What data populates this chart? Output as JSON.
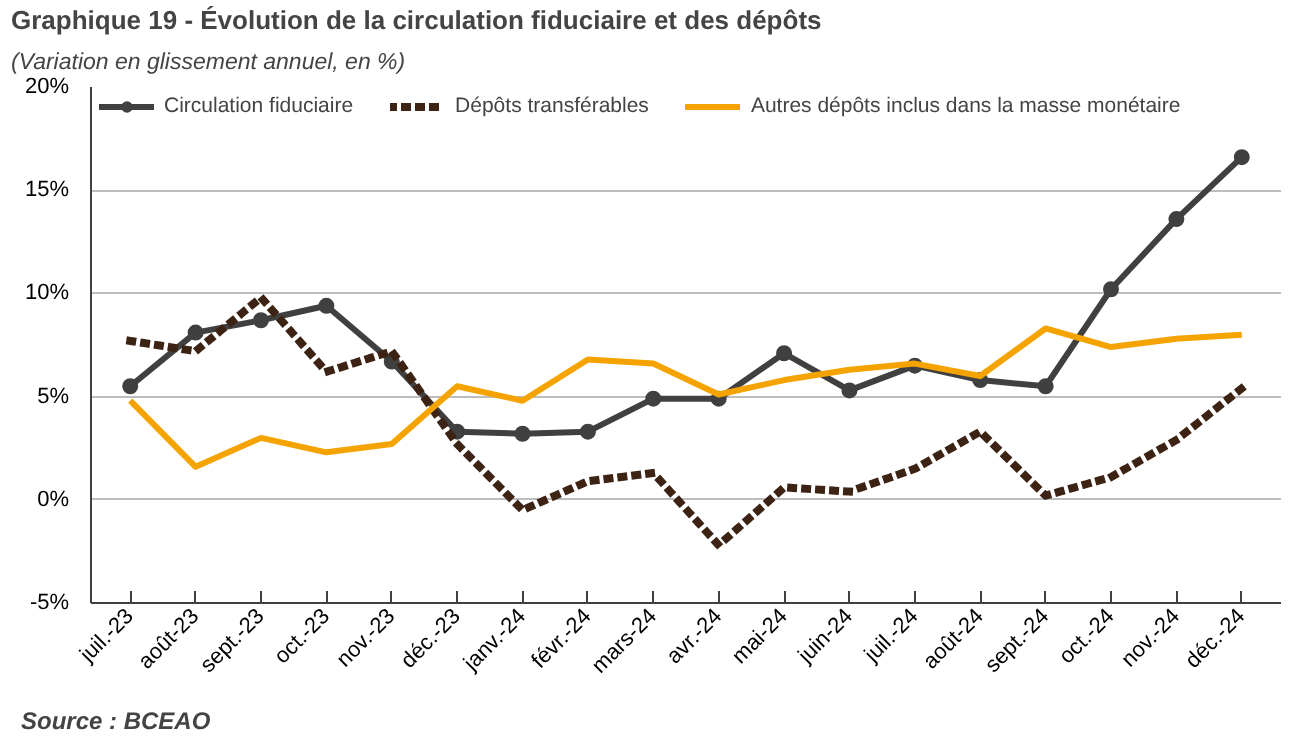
{
  "chart_data": {
    "type": "line",
    "title": "Graphique 19 - Évolution de la circulation fiduciaire et des dépôts",
    "subtitle": "(Variation en glissement annuel, en %)",
    "annotations": [
      "Source : BCEAO"
    ],
    "categories": [
      "juil.-23",
      "août-23",
      "sept.-23",
      "oct.-23",
      "nov.-23",
      "déc.-23",
      "janv.-24",
      "févr.-24",
      "mars-24",
      "avr.-24",
      "mai-24",
      "juin-24",
      "juil.-24",
      "août-24",
      "sept.-24",
      "oct.-24",
      "nov.-24",
      "déc.-24"
    ],
    "series": [
      {
        "name": "Circulation fiduciaire",
        "color": "#404040",
        "marker": "circle",
        "line_style": "solid",
        "values": [
          5.5,
          8.1,
          8.7,
          9.4,
          6.7,
          3.3,
          3.2,
          3.3,
          4.9,
          4.9,
          7.1,
          5.3,
          6.5,
          5.8,
          5.5,
          10.2,
          13.6,
          16.6
        ]
      },
      {
        "name": "Dépôts transférables",
        "color": "#3d2314",
        "marker": "none",
        "line_style": "dotted",
        "values": [
          7.7,
          7.2,
          9.8,
          6.2,
          7.2,
          2.7,
          -0.5,
          0.9,
          1.3,
          -2.2,
          0.6,
          0.4,
          1.5,
          3.3,
          0.2,
          1.1,
          2.9,
          5.4
        ]
      },
      {
        "name": "Autres dépôts inclus dans la masse monétaire",
        "color": "#f5a300",
        "marker": "none",
        "line_style": "solid",
        "values": [
          4.8,
          1.6,
          3.0,
          2.3,
          2.7,
          5.5,
          4.8,
          6.8,
          6.6,
          5.1,
          5.8,
          6.3,
          6.6,
          6.0,
          8.3,
          7.4,
          7.8,
          8.0
        ]
      }
    ],
    "ylim": [
      -5,
      20
    ],
    "yticks": [
      {
        "value": -5,
        "label": "-5%"
      },
      {
        "value": 0,
        "label": "0%"
      },
      {
        "value": 5,
        "label": "5%"
      },
      {
        "value": 10,
        "label": "10%"
      },
      {
        "value": 15,
        "label": "15%"
      },
      {
        "value": 20,
        "label": "20%"
      }
    ],
    "grid": "y",
    "legend": "top"
  }
}
